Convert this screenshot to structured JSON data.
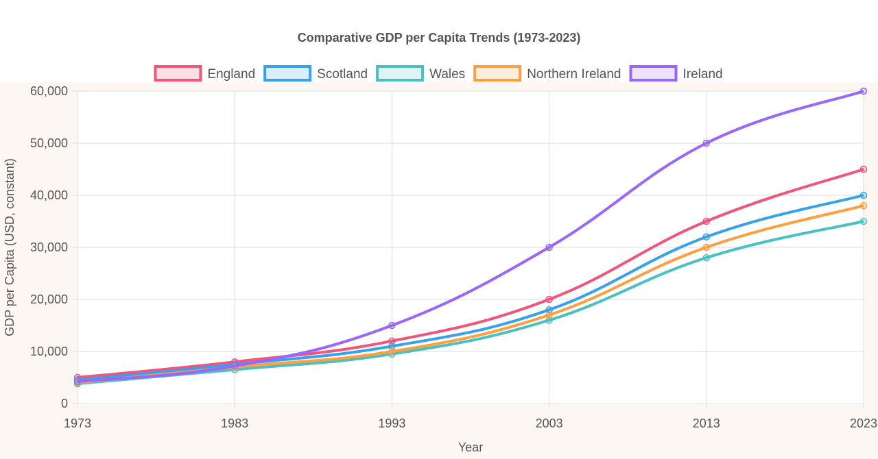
{
  "chart_data": {
    "type": "line",
    "title": "Comparative GDP per Capita Trends (1973-2023)",
    "xlabel": "Year",
    "ylabel": "GDP per Capita (USD, constant)",
    "x": [
      "1973",
      "1983",
      "1993",
      "2003",
      "2013",
      "2023"
    ],
    "ylim": [
      0,
      60000
    ],
    "y_ticks": [
      0,
      10000,
      20000,
      30000,
      40000,
      50000,
      60000
    ],
    "y_tick_labels": [
      "0",
      "10,000",
      "20,000",
      "30,000",
      "40,000",
      "50,000",
      "60,000"
    ],
    "grid": true,
    "legend_position": "top",
    "series": [
      {
        "name": "England",
        "color": "#f2557a",
        "values": [
          5000,
          8000,
          12000,
          20000,
          35000,
          45000
        ]
      },
      {
        "name": "Scotland",
        "color": "#36a2eb",
        "values": [
          4500,
          7500,
          11000,
          18000,
          32000,
          40000
        ]
      },
      {
        "name": "Wales",
        "color": "#4bc0c0",
        "values": [
          3800,
          6500,
          9500,
          16000,
          28000,
          35000
        ]
      },
      {
        "name": "Northern Ireland",
        "color": "#ff9f40",
        "values": [
          4000,
          7000,
          10000,
          17000,
          30000,
          38000
        ]
      },
      {
        "name": "Ireland",
        "color": "#9966ff",
        "values": [
          4200,
          7200,
          15000,
          30000,
          50000,
          60000
        ]
      }
    ]
  }
}
